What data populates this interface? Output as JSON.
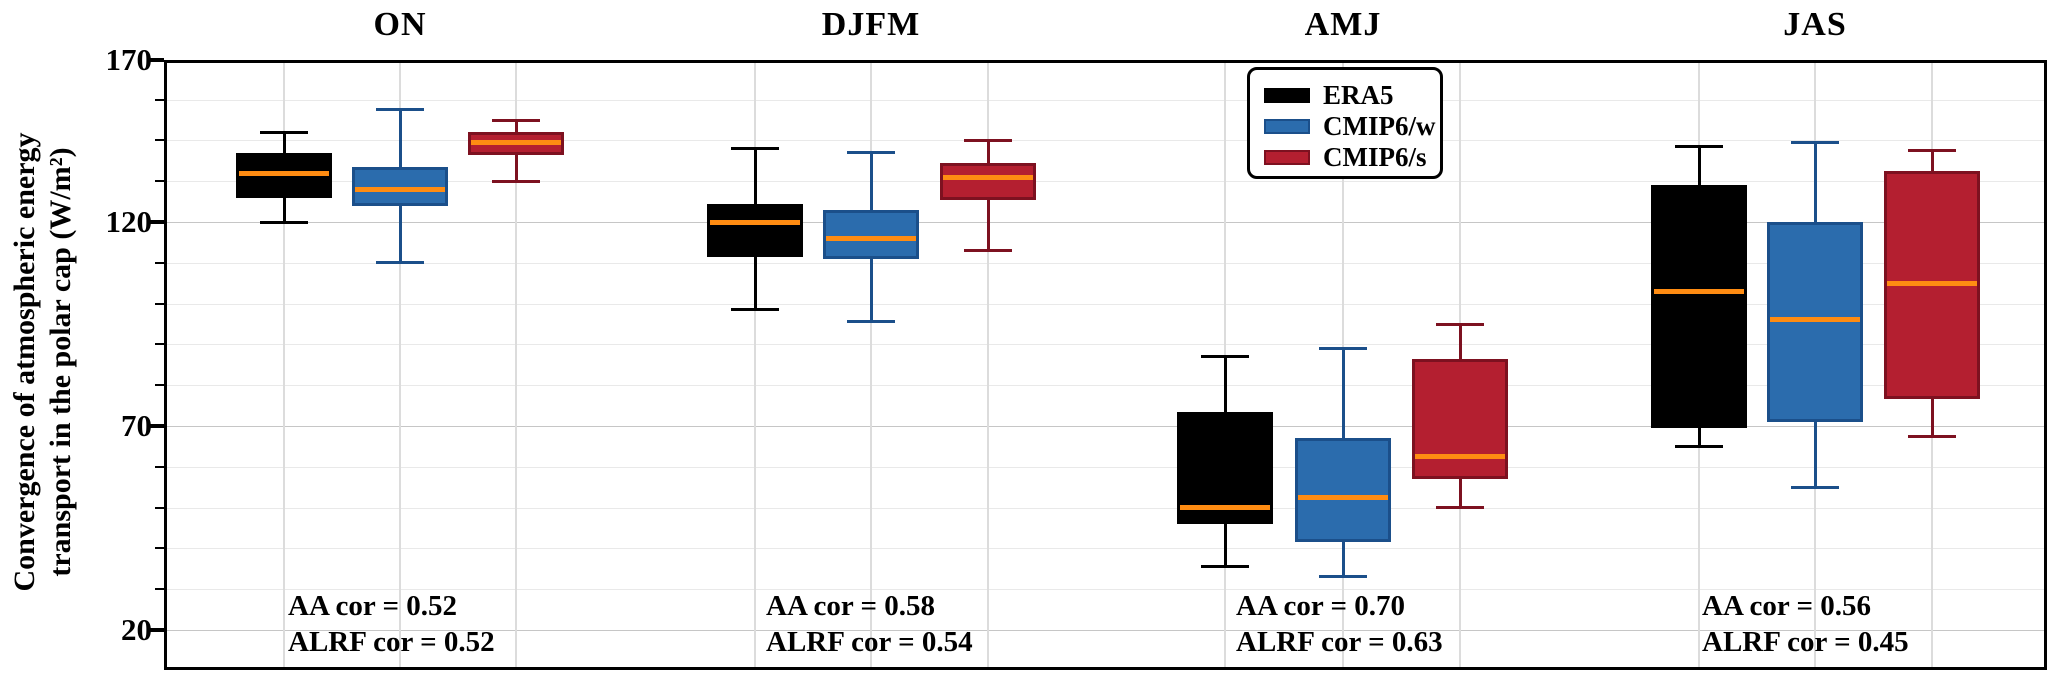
{
  "ylabel": {
    "line1": "Convergence of atmospheric energy",
    "line2": "transport in the polar cap (W/m²)"
  },
  "legend": {
    "items": [
      {
        "label": "ERA5",
        "fill": "#000000",
        "edge": "#000000"
      },
      {
        "label": "CMIP6/w",
        "fill": "#2b6cad",
        "edge": "#1b4f8a"
      },
      {
        "label": "CMIP6/s",
        "fill": "#b41f30",
        "edge": "#7d1120"
      }
    ]
  },
  "median_color": "#ff8c12",
  "chart_data": {
    "type": "boxplot",
    "ylabel": "Convergence of atmospheric energy transport in the polar cap (W/m²)",
    "y_ticks": [
      {
        "label": "170",
        "value": 170
      },
      {
        "label": "120",
        "value": 120
      },
      {
        "label": "70",
        "value": 70
      },
      {
        "label": "20",
        "value": 20
      }
    ],
    "y_minor_step": 10,
    "ylim": [
      10,
      160
    ],
    "grid": true,
    "legend_position": "top-center",
    "series": [
      "ERA5",
      "CMIP6/w",
      "CMIP6/s"
    ],
    "groups": [
      {
        "label": "ON",
        "annotation_lines": [
          "AA cor = 0.52",
          "ALRF cor = 0.52"
        ],
        "boxes": [
          {
            "series": "ERA5",
            "whislo": 120,
            "q1": 126,
            "med": 132,
            "q3": 137,
            "whishi": 142
          },
          {
            "series": "CMIP6/w",
            "whislo": 110,
            "q1": 124,
            "med": 128,
            "q3": 133.5,
            "whishi": 147.5
          },
          {
            "series": "CMIP6/s",
            "whislo": 130,
            "q1": 136.5,
            "med": 139.5,
            "q3": 142,
            "whishi": 145
          }
        ]
      },
      {
        "label": "DJFM",
        "annotation_lines": [
          "AA cor = 0.58",
          "ALRF cor = 0.54"
        ],
        "boxes": [
          {
            "series": "ERA5",
            "whislo": 98.5,
            "q1": 111.5,
            "med": 120,
            "q3": 124.5,
            "whishi": 138
          },
          {
            "series": "CMIP6/w",
            "whislo": 95.5,
            "q1": 111,
            "med": 116,
            "q3": 123,
            "whishi": 137
          },
          {
            "series": "CMIP6/s",
            "whislo": 113,
            "q1": 125.5,
            "med": 131,
            "q3": 134.5,
            "whishi": 140
          }
        ]
      },
      {
        "label": "AMJ",
        "annotation_lines": [
          "AA cor = 0.70",
          "ALRF cor = 0.63"
        ],
        "boxes": [
          {
            "series": "ERA5",
            "whislo": 35.5,
            "q1": 46,
            "med": 50,
            "q3": 73.5,
            "whishi": 87
          },
          {
            "series": "CMIP6/w",
            "whislo": 33,
            "q1": 41.5,
            "med": 52.5,
            "q3": 67,
            "whishi": 89
          },
          {
            "series": "CMIP6/s",
            "whislo": 50,
            "q1": 57,
            "med": 62.5,
            "q3": 86.5,
            "whishi": 95
          }
        ]
      },
      {
        "label": "JAS",
        "annotation_lines": [
          "AA cor = 0.56",
          "ALRF cor = 0.45"
        ],
        "boxes": [
          {
            "series": "ERA5",
            "whislo": 65,
            "q1": 69.5,
            "med": 103,
            "q3": 129,
            "whishi": 138.5
          },
          {
            "series": "CMIP6/w",
            "whislo": 55,
            "q1": 71,
            "med": 96,
            "q3": 120,
            "whishi": 139.5
          },
          {
            "series": "CMIP6/s",
            "whislo": 67.5,
            "q1": 76.5,
            "med": 105,
            "q3": 132.5,
            "whishi": 137.5
          }
        ]
      }
    ]
  }
}
